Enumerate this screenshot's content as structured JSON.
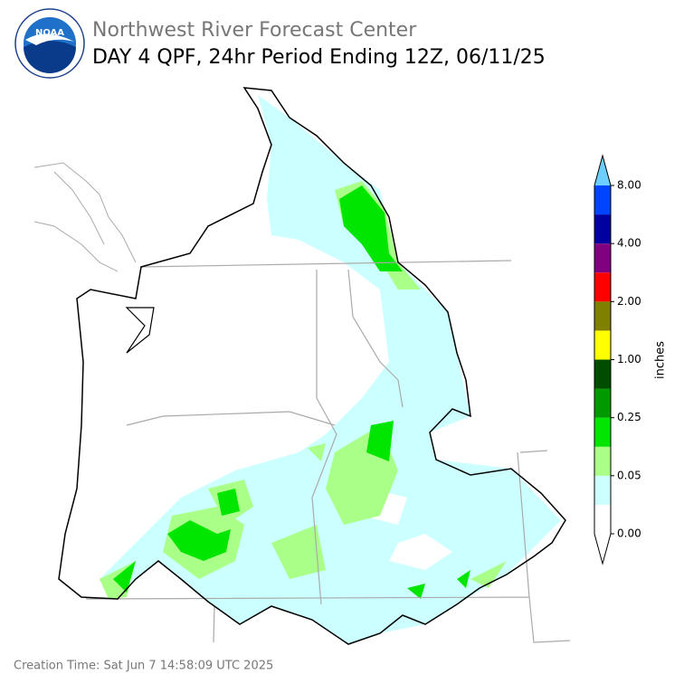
{
  "header": {
    "logo": "NOAA",
    "agency": "Northwest River Forecast Center",
    "title": "DAY 4 QPF, 24hr Period Ending 12Z, 06/11/25"
  },
  "colorbar": {
    "label": "inches",
    "ticks": [
      "0.00",
      "0.05",
      "0.25",
      "1.00",
      "2.00",
      "4.00",
      "8.00"
    ],
    "under_color": "#ffffff",
    "over_color": "#6ccfff",
    "colors": [
      "#ffffff",
      "#ccffff",
      "#aaff88",
      "#00e600",
      "#009900",
      "#004d00",
      "#ffff00",
      "#808000",
      "#ff0000",
      "#800080",
      "#0000a0",
      "#0044ff"
    ]
  },
  "footer": "Creation Time: Sat Jun 7 14:58:09 UTC 2025"
}
